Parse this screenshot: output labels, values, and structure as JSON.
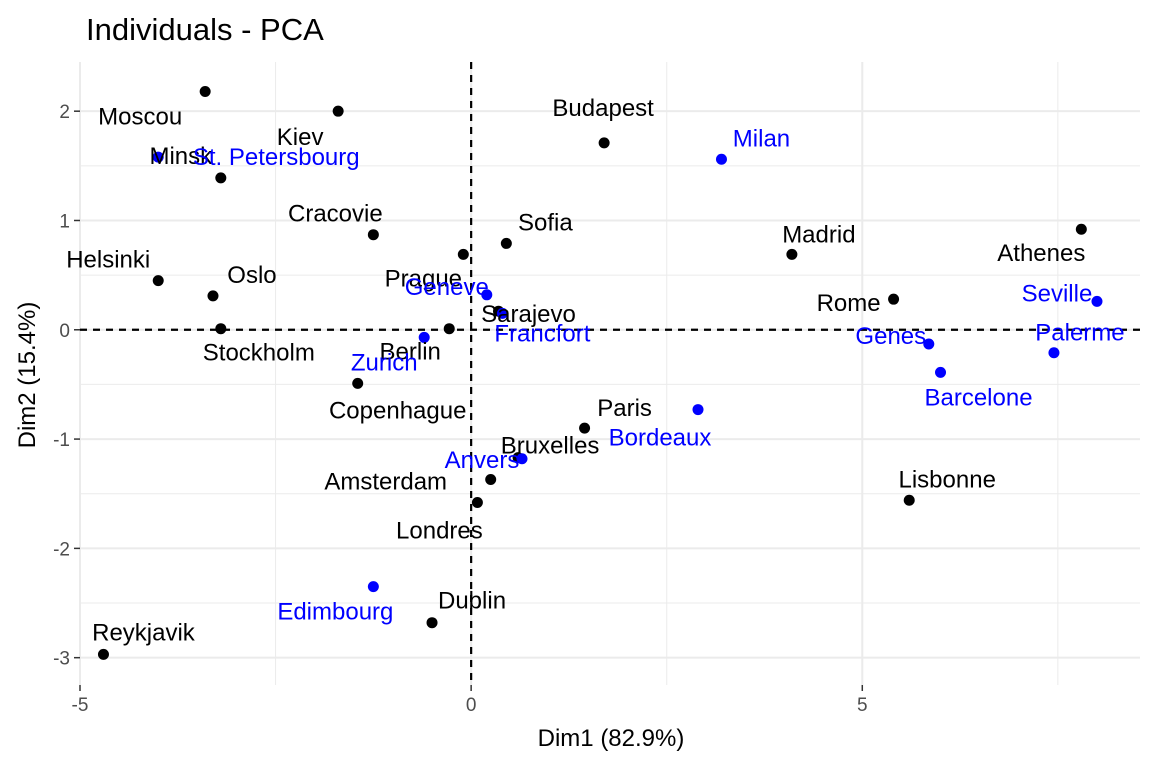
{
  "chart_data": {
    "type": "scatter",
    "title": "Individuals - PCA",
    "xlabel": "Dim1 (82.9%)",
    "ylabel": "Dim2 (15.4%)",
    "xlim": [
      -5.0,
      8.55
    ],
    "ylim": [
      -3.25,
      2.45
    ],
    "xticks": [
      -5,
      0,
      5
    ],
    "xtick_labels": [
      "-5",
      "0",
      "5"
    ],
    "yticks": [
      -3,
      -2,
      -1,
      0,
      1,
      2
    ],
    "ytick_labels": [
      "-3",
      "-2",
      "-1",
      "0",
      "1",
      "2"
    ],
    "grid": true,
    "reference_lines": {
      "x": 0,
      "y": 0,
      "style": "dashed"
    },
    "colors": {
      "active": "#000000",
      "supplementary": "#0000ff",
      "grid": "#ebebeb",
      "tick": "#4d4d4d"
    },
    "points": [
      {
        "label": "Moscou",
        "x": -3.4,
        "y": 2.18,
        "group": "active"
      },
      {
        "label": "Kiev",
        "x": -1.7,
        "y": 2.0,
        "group": "active"
      },
      {
        "label": "Minsk",
        "x": -3.2,
        "y": 1.39,
        "group": "active"
      },
      {
        "label": "St. Petersbourg",
        "x": -4.0,
        "y": 1.58,
        "group": "supplementary"
      },
      {
        "label": "Budapest",
        "x": 1.7,
        "y": 1.71,
        "group": "active"
      },
      {
        "label": "Milan",
        "x": 3.2,
        "y": 1.56,
        "group": "supplementary"
      },
      {
        "label": "Cracovie",
        "x": -1.25,
        "y": 0.87,
        "group": "active"
      },
      {
        "label": "Sofia",
        "x": 0.45,
        "y": 0.79,
        "group": "active"
      },
      {
        "label": "Madrid",
        "x": 4.1,
        "y": 0.69,
        "group": "active"
      },
      {
        "label": "Athenes",
        "x": 7.8,
        "y": 0.92,
        "group": "active"
      },
      {
        "label": "Helsinki",
        "x": -4.0,
        "y": 0.45,
        "group": "active"
      },
      {
        "label": "Oslo",
        "x": -3.3,
        "y": 0.31,
        "group": "active"
      },
      {
        "label": "Prague",
        "x": -0.1,
        "y": 0.69,
        "group": "active"
      },
      {
        "label": "Geneve",
        "x": 0.2,
        "y": 0.32,
        "group": "supplementary"
      },
      {
        "label": "Sarajevo",
        "x": 0.35,
        "y": 0.17,
        "group": "active"
      },
      {
        "label": "Francfort",
        "x": 0.4,
        "y": 0.15,
        "group": "supplementary"
      },
      {
        "label": "Seville",
        "x": 8.0,
        "y": 0.26,
        "group": "supplementary"
      },
      {
        "label": "Rome",
        "x": 5.4,
        "y": 0.28,
        "group": "active"
      },
      {
        "label": "Genes",
        "x": 5.85,
        "y": -0.13,
        "group": "supplementary"
      },
      {
        "label": "Palerme",
        "x": 7.45,
        "y": -0.21,
        "group": "supplementary"
      },
      {
        "label": "Stockholm",
        "x": -3.2,
        "y": 0.01,
        "group": "active"
      },
      {
        "label": "Berlin",
        "x": -0.28,
        "y": 0.01,
        "group": "active"
      },
      {
        "label": "Zurich",
        "x": -0.6,
        "y": -0.07,
        "group": "supplementary"
      },
      {
        "label": "Barcelone",
        "x": 6.0,
        "y": -0.39,
        "group": "supplementary"
      },
      {
        "label": "Copenhague",
        "x": -1.45,
        "y": -0.49,
        "group": "active"
      },
      {
        "label": "Paris",
        "x": 1.45,
        "y": -0.9,
        "group": "active"
      },
      {
        "label": "Bordeaux",
        "x": 2.9,
        "y": -0.73,
        "group": "supplementary"
      },
      {
        "label": "Bruxelles",
        "x": 0.6,
        "y": -1.17,
        "group": "active"
      },
      {
        "label": "Anvers",
        "x": 0.65,
        "y": -1.18,
        "group": "supplementary"
      },
      {
        "label": "Amsterdam",
        "x": 0.25,
        "y": -1.37,
        "group": "active"
      },
      {
        "label": "Lisbonne",
        "x": 5.6,
        "y": -1.56,
        "group": "active"
      },
      {
        "label": "Londres",
        "x": 0.08,
        "y": -1.58,
        "group": "active"
      },
      {
        "label": "Edimbourg",
        "x": -1.25,
        "y": -2.35,
        "group": "supplementary"
      },
      {
        "label": "Dublin",
        "x": -0.5,
        "y": -2.68,
        "group": "active"
      },
      {
        "label": "Reykjavik",
        "x": -4.7,
        "y": -2.97,
        "group": "active"
      }
    ]
  }
}
